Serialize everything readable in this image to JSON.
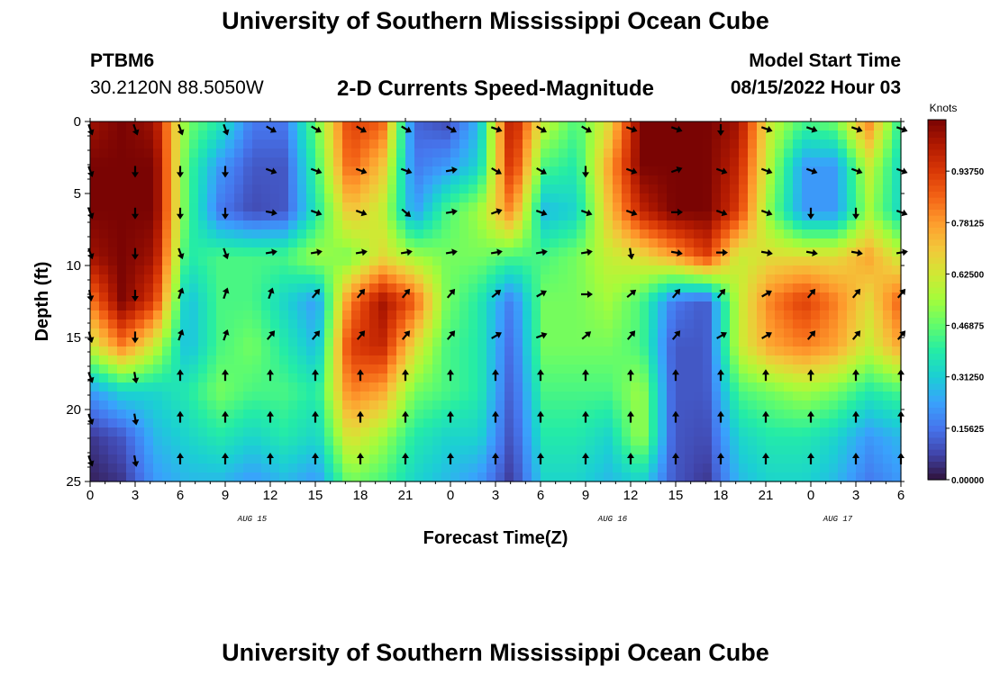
{
  "page": {
    "title_top": "University of Southern Mississippi Ocean Cube",
    "title_bottom": "University of Southern Mississippi Ocean Cube",
    "station": "PTBM6",
    "coords": "30.2120N  88.5050W",
    "plot_title": "2-D Currents Speed-Magnitude",
    "model_start_label": "Model Start Time",
    "model_start_value": "08/15/2022 Hour 03"
  },
  "chart_data": {
    "type": "heatmap",
    "title": "2-D Currents Speed-Magnitude",
    "xlabel": "Forecast Time(Z)",
    "ylabel": "Depth (ft)",
    "x_tick_labels": [
      "0",
      "3",
      "6",
      "9",
      "12",
      "15",
      "18",
      "21",
      "0",
      "3",
      "6",
      "9",
      "12",
      "15",
      "18",
      "21",
      "0",
      "3",
      "6"
    ],
    "x_date_labels": [
      {
        "label": "AUG 15",
        "at_tick": 3.6
      },
      {
        "label": "AUG 16",
        "at_tick": 11.6
      },
      {
        "label": "AUG 17",
        "at_tick": 16.6
      }
    ],
    "y_ticks": [
      0,
      5,
      10,
      15,
      20,
      25
    ],
    "ylim": [
      0,
      25
    ],
    "colorbar": {
      "unit": "Knots",
      "min": 0,
      "max": 1.0938,
      "labels": [
        "0.00000",
        "0.15625",
        "0.31250",
        "0.46875",
        "0.62500",
        "0.78125",
        "0.93750"
      ],
      "colors": [
        "#30123b",
        "#4145ab",
        "#4675ed",
        "#39a2fc",
        "#1bcfd4",
        "#24eca6",
        "#61fc6c",
        "#a4fc3b",
        "#d1e834",
        "#f3c63a",
        "#fe9b2d",
        "#f36315",
        "#d93806",
        "#b11901",
        "#7a0403"
      ]
    },
    "depth_rows": [
      0.5,
      3.4,
      6.3,
      9.1,
      12.0,
      14.9,
      17.7,
      20.6,
      23.5
    ],
    "speed_grid": [
      [
        0.95,
        1.0,
        0.95,
        0.45,
        0.35,
        0.15,
        0.15,
        0.45,
        0.85,
        0.8,
        0.12,
        0.08,
        0.25,
        0.95,
        0.55,
        0.4,
        0.6,
        1.0,
        1.0,
        1.0,
        0.95,
        0.55,
        0.4,
        0.45,
        0.75,
        0.35
      ],
      [
        1.0,
        1.0,
        1.0,
        0.4,
        0.2,
        0.1,
        0.1,
        0.4,
        0.8,
        0.65,
        0.15,
        0.2,
        0.3,
        0.9,
        0.4,
        0.35,
        0.7,
        1.0,
        1.0,
        1.0,
        0.9,
        0.5,
        0.2,
        0.2,
        0.55,
        0.3
      ],
      [
        1.0,
        1.0,
        1.0,
        0.4,
        0.15,
        0.08,
        0.1,
        0.35,
        0.65,
        0.55,
        0.2,
        0.4,
        0.5,
        0.75,
        0.25,
        0.3,
        0.65,
        0.9,
        1.0,
        1.0,
        0.85,
        0.45,
        0.2,
        0.2,
        0.5,
        0.3
      ],
      [
        0.95,
        1.0,
        0.95,
        0.35,
        0.4,
        0.4,
        0.4,
        0.5,
        0.45,
        0.6,
        0.5,
        0.45,
        0.45,
        0.4,
        0.4,
        0.45,
        0.55,
        0.6,
        0.7,
        0.85,
        0.55,
        0.6,
        0.6,
        0.6,
        0.7,
        0.55
      ],
      [
        0.75,
        1.0,
        0.85,
        0.25,
        0.4,
        0.4,
        0.3,
        0.2,
        0.75,
        0.95,
        0.8,
        0.45,
        0.35,
        0.15,
        0.45,
        0.45,
        0.5,
        0.4,
        0.15,
        0.1,
        0.55,
        0.75,
        0.85,
        0.75,
        0.6,
        0.8
      ],
      [
        0.55,
        0.75,
        0.55,
        0.25,
        0.4,
        0.45,
        0.35,
        0.25,
        0.85,
        0.9,
        0.6,
        0.4,
        0.35,
        0.12,
        0.45,
        0.45,
        0.45,
        0.4,
        0.1,
        0.1,
        0.55,
        0.7,
        0.75,
        0.7,
        0.55,
        0.7
      ],
      [
        0.2,
        0.3,
        0.3,
        0.35,
        0.45,
        0.4,
        0.4,
        0.35,
        0.75,
        0.7,
        0.45,
        0.4,
        0.35,
        0.1,
        0.4,
        0.4,
        0.4,
        0.5,
        0.1,
        0.1,
        0.4,
        0.45,
        0.5,
        0.45,
        0.35,
        0.4
      ],
      [
        0.05,
        0.1,
        0.25,
        0.3,
        0.35,
        0.3,
        0.35,
        0.3,
        0.6,
        0.5,
        0.35,
        0.3,
        0.3,
        0.08,
        0.35,
        0.35,
        0.3,
        0.5,
        0.1,
        0.08,
        0.3,
        0.35,
        0.35,
        0.3,
        0.2,
        0.25
      ],
      [
        0.02,
        0.05,
        0.2,
        0.25,
        0.25,
        0.2,
        0.25,
        0.2,
        0.45,
        0.4,
        0.3,
        0.25,
        0.2,
        0.05,
        0.3,
        0.3,
        0.25,
        0.3,
        0.1,
        0.05,
        0.25,
        0.3,
        0.3,
        0.25,
        0.15,
        0.2
      ]
    ],
    "arrow_columns": 19,
    "arrow_directions_deg": [
      [
        160,
        160,
        160,
        160,
        120,
        120,
        120,
        120,
        120,
        110,
        120,
        120,
        110,
        110,
        180,
        110,
        110,
        110,
        110
      ],
      [
        160,
        180,
        180,
        180,
        110,
        110,
        110,
        110,
        80,
        120,
        120,
        180,
        110,
        70,
        110,
        110,
        110,
        110,
        110
      ],
      [
        160,
        180,
        180,
        180,
        100,
        110,
        110,
        130,
        80,
        70,
        110,
        110,
        110,
        90,
        110,
        110,
        180,
        180,
        110
      ],
      [
        160,
        180,
        160,
        160,
        80,
        80,
        80,
        80,
        80,
        80,
        80,
        80,
        170,
        100,
        90,
        100,
        100,
        100,
        80
      ],
      [
        170,
        180,
        20,
        20,
        20,
        40,
        40,
        40,
        40,
        50,
        60,
        90,
        50,
        40,
        40,
        60,
        40,
        40,
        40
      ],
      [
        165,
        180,
        20,
        20,
        40,
        40,
        40,
        40,
        40,
        60,
        70,
        50,
        40,
        40,
        60,
        60,
        40,
        40,
        40
      ],
      [
        160,
        170,
        0,
        0,
        0,
        0,
        0,
        0,
        0,
        0,
        0,
        0,
        0,
        0,
        0,
        0,
        0,
        0,
        0
      ],
      [
        160,
        170,
        0,
        0,
        0,
        0,
        0,
        0,
        0,
        0,
        0,
        0,
        0,
        0,
        0,
        0,
        0,
        0,
        0
      ],
      [
        160,
        170,
        0,
        0,
        0,
        0,
        0,
        0,
        0,
        0,
        0,
        0,
        0,
        0,
        0,
        0,
        0,
        0,
        0
      ]
    ]
  }
}
